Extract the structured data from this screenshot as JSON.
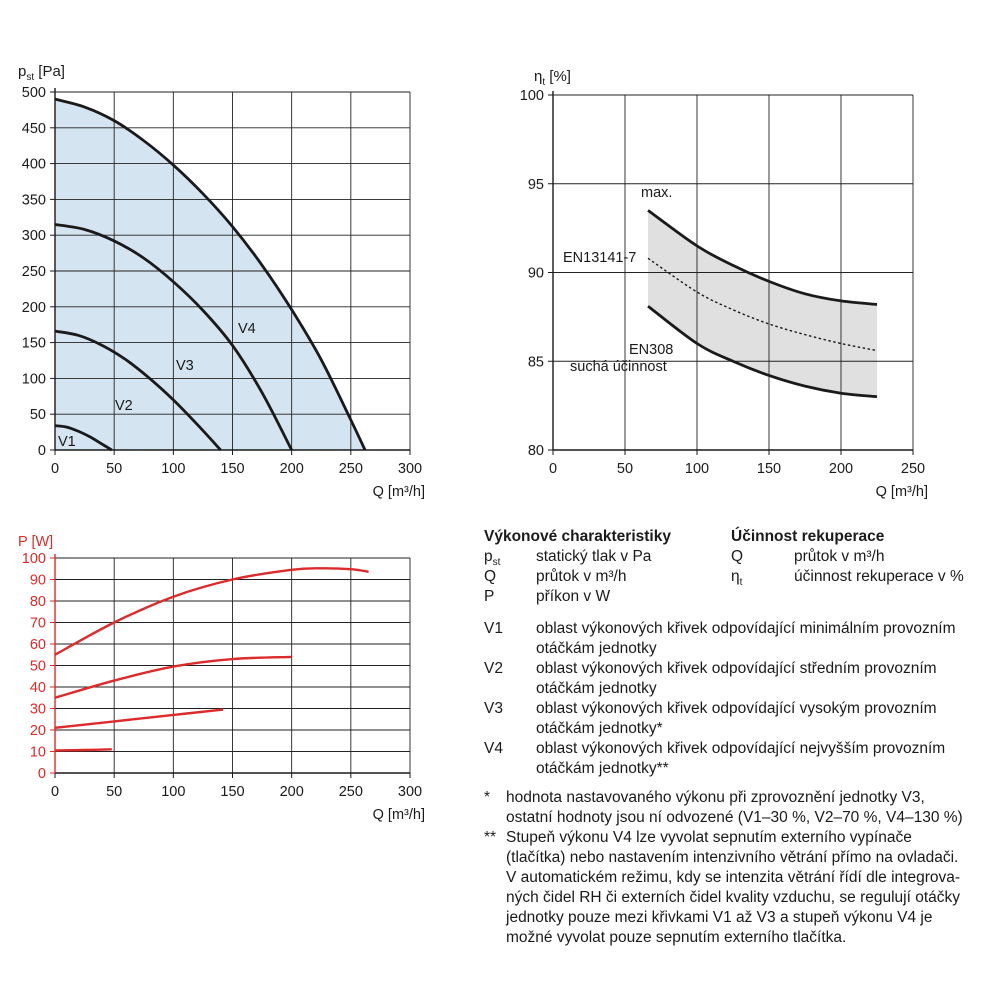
{
  "chart_data": [
    {
      "type": "line",
      "id": "static-pressure",
      "ylabel_sym": "p",
      "ylabel_sub": "st",
      "ylabel_unit": "[Pa]",
      "xlabel": "Q [m³/h]",
      "xlim": [
        0,
        300
      ],
      "ylim": [
        0,
        500
      ],
      "xticks": [
        0,
        50,
        100,
        150,
        200,
        250,
        300
      ],
      "yticks": [
        0,
        50,
        100,
        150,
        200,
        250,
        300,
        350,
        400,
        450,
        500
      ],
      "grid": true,
      "fill": "#d4e4f0",
      "series": [
        {
          "name": "V1",
          "x": [
            0,
            10,
            20,
            30,
            40,
            48
          ],
          "y": [
            34,
            32,
            26,
            18,
            8,
            0
          ]
        },
        {
          "name": "V2",
          "x": [
            0,
            20,
            40,
            60,
            80,
            100,
            120,
            140
          ],
          "y": [
            166,
            160,
            146,
            126,
            100,
            70,
            36,
            0
          ]
        },
        {
          "name": "V3",
          "x": [
            0,
            25,
            50,
            75,
            100,
            125,
            150,
            175,
            200
          ],
          "y": [
            315,
            308,
            292,
            268,
            235,
            195,
            146,
            80,
            0
          ]
        },
        {
          "name": "V4",
          "x": [
            0,
            25,
            50,
            75,
            100,
            125,
            150,
            175,
            200,
            225,
            250,
            262
          ],
          "y": [
            490,
            479,
            460,
            432,
            398,
            358,
            312,
            258,
            196,
            126,
            42,
            0
          ]
        }
      ]
    },
    {
      "type": "area",
      "id": "recovery-efficiency",
      "ylabel_sym": "η",
      "ylabel_sub": "t",
      "ylabel_unit": "[%]",
      "xlabel": "Q [m³/h]",
      "xlim": [
        0,
        250
      ],
      "ylim": [
        80,
        100
      ],
      "xticks": [
        0,
        50,
        100,
        150,
        200,
        250
      ],
      "yticks": [
        80,
        85,
        90,
        95,
        100
      ],
      "grid": true,
      "band_color": "#e0e0e0",
      "series": [
        {
          "name": "max.",
          "x": [
            66,
            100,
            125,
            150,
            175,
            200,
            225
          ],
          "y": [
            93.5,
            91.5,
            90.4,
            89.5,
            88.8,
            88.4,
            88.2
          ]
        },
        {
          "name": "EN13141-7",
          "x": [
            66,
            100,
            125,
            150,
            175,
            200,
            225
          ],
          "y": [
            90.8,
            88.9,
            87.9,
            87.1,
            86.5,
            86.0,
            85.6
          ]
        },
        {
          "name": "EN308 suchá účinnost",
          "x": [
            66,
            100,
            125,
            150,
            175,
            200,
            225
          ],
          "y": [
            88.1,
            86.0,
            85.0,
            84.2,
            83.6,
            83.2,
            83.0
          ]
        }
      ],
      "annotations": [
        "max.",
        "EN13141-7",
        "EN308",
        "suchá účinnost"
      ]
    },
    {
      "type": "line",
      "id": "power-input",
      "ylabel": "P [W]",
      "xlabel": "Q [m³/h]",
      "xlim": [
        0,
        300
      ],
      "ylim": [
        0,
        100
      ],
      "xticks": [
        0,
        50,
        100,
        150,
        200,
        250,
        300
      ],
      "yticks": [
        0,
        10,
        20,
        30,
        40,
        50,
        60,
        70,
        80,
        90,
        100
      ],
      "grid": true,
      "line_color": "#dd2a2a",
      "series": [
        {
          "name": "V1",
          "x": [
            0,
            25,
            48
          ],
          "y": [
            10.5,
            10.7,
            11
          ]
        },
        {
          "name": "V2",
          "x": [
            0,
            50,
            100,
            142
          ],
          "y": [
            21,
            24,
            27,
            29.5
          ]
        },
        {
          "name": "V3",
          "x": [
            0,
            50,
            100,
            150,
            200
          ],
          "y": [
            35,
            43,
            49.5,
            53,
            54
          ]
        },
        {
          "name": "V4",
          "x": [
            0,
            50,
            100,
            150,
            200,
            225,
            250,
            265
          ],
          "y": [
            55,
            70,
            82,
            90,
            94.5,
            95.2,
            94.8,
            93.6
          ]
        }
      ]
    }
  ],
  "legend": {
    "perf_title": "Výkonové charakteristiky",
    "eff_title": "Účinnost rekuperace",
    "perf_items": [
      {
        "sym": "p",
        "sub": "st",
        "desc": "statický tlak v Pa"
      },
      {
        "sym": "Q",
        "sub": "",
        "desc": "průtok v m³/h"
      },
      {
        "sym": "P",
        "sub": "",
        "desc": "příkon v W"
      }
    ],
    "eff_items": [
      {
        "sym": "Q",
        "sub": "",
        "desc": "průtok v m³/h"
      },
      {
        "sym": "η",
        "sub": "t",
        "desc": "účinnost rekuperace v %"
      }
    ],
    "v_items": [
      {
        "key": "V1",
        "line1": "oblast výkonových křivek odpovídající minimálním provozním",
        "line2": "otáčkám jednotky"
      },
      {
        "key": "V2",
        "line1": "oblast výkonových křivek odpovídající středním provozním",
        "line2": "otáčkám jednotky"
      },
      {
        "key": "V3",
        "line1": "oblast výkonových křivek odpovídající vysokým provozním",
        "line2": "otáčkám jednotky*"
      },
      {
        "key": "V4",
        "line1": "oblast výkonových křivek odpovídající nejvyšším provozním",
        "line2": "otáčkám jednotky**"
      }
    ],
    "notes": [
      {
        "key": "*",
        "lines": [
          "hodnota nastavovaného výkonu při zprovoznění jednotky V3,",
          "ostatní hodnoty jsou ní odvozené (V1–30 %, V2–70 %, V4–130 %)"
        ]
      },
      {
        "key": "**",
        "lines": [
          "Stupeň výkonu V4 lze vyvolat sepnutím externího vypínače",
          "(tlačítka) nebo nastavením intenzivního větrání přímo na ovladači.",
          "V automatickém režimu, kdy se intenzita větrání řídí dle integrova-",
          "ných čidel RH či externích čidel kvality vzduchu, se regulují otáčky",
          "jednotky pouze mezi křivkami V1 až V3 a stupeň výkonu V4 je",
          "možné vyvolat pouze sepnutím externího tlačítka."
        ]
      }
    ]
  }
}
